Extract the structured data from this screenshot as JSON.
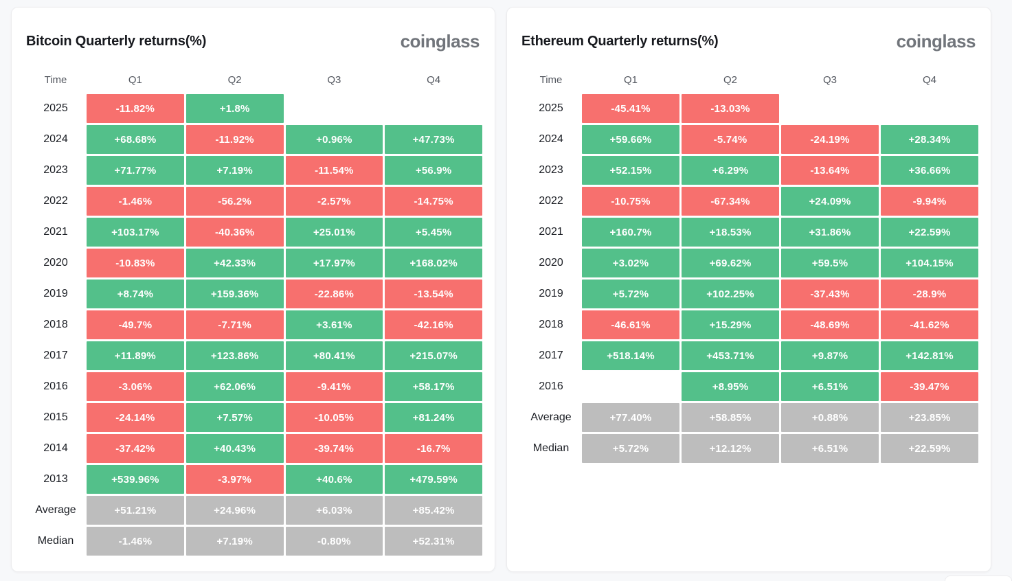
{
  "page": {
    "background": "#f7f8fa"
  },
  "colors": {
    "positive": "#53c08a",
    "negative": "#f7706e",
    "summary": "#bdbdbd"
  },
  "panels": [
    {
      "title": "Bitcoin Quarterly returns(%)",
      "logo": "coinglass",
      "columns": [
        "Time",
        "Q1",
        "Q2",
        "Q3",
        "Q4"
      ],
      "rows": [
        {
          "label": "2025",
          "cells": [
            {
              "v": "-11.82%",
              "c": "r"
            },
            {
              "v": "+1.8%",
              "c": "g"
            },
            {
              "v": "",
              "c": "e"
            },
            {
              "v": "",
              "c": "e"
            }
          ]
        },
        {
          "label": "2024",
          "cells": [
            {
              "v": "+68.68%",
              "c": "g"
            },
            {
              "v": "-11.92%",
              "c": "r"
            },
            {
              "v": "+0.96%",
              "c": "g"
            },
            {
              "v": "+47.73%",
              "c": "g"
            }
          ]
        },
        {
          "label": "2023",
          "cells": [
            {
              "v": "+71.77%",
              "c": "g"
            },
            {
              "v": "+7.19%",
              "c": "g"
            },
            {
              "v": "-11.54%",
              "c": "r"
            },
            {
              "v": "+56.9%",
              "c": "g"
            }
          ]
        },
        {
          "label": "2022",
          "cells": [
            {
              "v": "-1.46%",
              "c": "r"
            },
            {
              "v": "-56.2%",
              "c": "r"
            },
            {
              "v": "-2.57%",
              "c": "r"
            },
            {
              "v": "-14.75%",
              "c": "r"
            }
          ]
        },
        {
          "label": "2021",
          "cells": [
            {
              "v": "+103.17%",
              "c": "g"
            },
            {
              "v": "-40.36%",
              "c": "r"
            },
            {
              "v": "+25.01%",
              "c": "g"
            },
            {
              "v": "+5.45%",
              "c": "g"
            }
          ]
        },
        {
          "label": "2020",
          "cells": [
            {
              "v": "-10.83%",
              "c": "r"
            },
            {
              "v": "+42.33%",
              "c": "g"
            },
            {
              "v": "+17.97%",
              "c": "g"
            },
            {
              "v": "+168.02%",
              "c": "g"
            }
          ]
        },
        {
          "label": "2019",
          "cells": [
            {
              "v": "+8.74%",
              "c": "g"
            },
            {
              "v": "+159.36%",
              "c": "g"
            },
            {
              "v": "-22.86%",
              "c": "r"
            },
            {
              "v": "-13.54%",
              "c": "r"
            }
          ]
        },
        {
          "label": "2018",
          "cells": [
            {
              "v": "-49.7%",
              "c": "r"
            },
            {
              "v": "-7.71%",
              "c": "r"
            },
            {
              "v": "+3.61%",
              "c": "g"
            },
            {
              "v": "-42.16%",
              "c": "r"
            }
          ]
        },
        {
          "label": "2017",
          "cells": [
            {
              "v": "+11.89%",
              "c": "g"
            },
            {
              "v": "+123.86%",
              "c": "g"
            },
            {
              "v": "+80.41%",
              "c": "g"
            },
            {
              "v": "+215.07%",
              "c": "g"
            }
          ]
        },
        {
          "label": "2016",
          "cells": [
            {
              "v": "-3.06%",
              "c": "r"
            },
            {
              "v": "+62.06%",
              "c": "g"
            },
            {
              "v": "-9.41%",
              "c": "r"
            },
            {
              "v": "+58.17%",
              "c": "g"
            }
          ]
        },
        {
          "label": "2015",
          "cells": [
            {
              "v": "-24.14%",
              "c": "r"
            },
            {
              "v": "+7.57%",
              "c": "g"
            },
            {
              "v": "-10.05%",
              "c": "r"
            },
            {
              "v": "+81.24%",
              "c": "g"
            }
          ]
        },
        {
          "label": "2014",
          "cells": [
            {
              "v": "-37.42%",
              "c": "r"
            },
            {
              "v": "+40.43%",
              "c": "g"
            },
            {
              "v": "-39.74%",
              "c": "r"
            },
            {
              "v": "-16.7%",
              "c": "r"
            }
          ]
        },
        {
          "label": "2013",
          "cells": [
            {
              "v": "+539.96%",
              "c": "g"
            },
            {
              "v": "-3.97%",
              "c": "r"
            },
            {
              "v": "+40.6%",
              "c": "g"
            },
            {
              "v": "+479.59%",
              "c": "g"
            }
          ]
        },
        {
          "label": "Average",
          "cells": [
            {
              "v": "+51.21%",
              "c": "a"
            },
            {
              "v": "+24.96%",
              "c": "a"
            },
            {
              "v": "+6.03%",
              "c": "a"
            },
            {
              "v": "+85.42%",
              "c": "a"
            }
          ]
        },
        {
          "label": "Median",
          "cells": [
            {
              "v": "-1.46%",
              "c": "a"
            },
            {
              "v": "+7.19%",
              "c": "a"
            },
            {
              "v": "-0.80%",
              "c": "a"
            },
            {
              "v": "+52.31%",
              "c": "a"
            }
          ]
        }
      ]
    },
    {
      "title": "Ethereum Quarterly returns(%)",
      "logo": "coinglass",
      "columns": [
        "Time",
        "Q1",
        "Q2",
        "Q3",
        "Q4"
      ],
      "rows": [
        {
          "label": "2025",
          "cells": [
            {
              "v": "-45.41%",
              "c": "r"
            },
            {
              "v": "-13.03%",
              "c": "r"
            },
            {
              "v": "",
              "c": "e"
            },
            {
              "v": "",
              "c": "e"
            }
          ]
        },
        {
          "label": "2024",
          "cells": [
            {
              "v": "+59.66%",
              "c": "g"
            },
            {
              "v": "-5.74%",
              "c": "r"
            },
            {
              "v": "-24.19%",
              "c": "r"
            },
            {
              "v": "+28.34%",
              "c": "g"
            }
          ]
        },
        {
          "label": "2023",
          "cells": [
            {
              "v": "+52.15%",
              "c": "g"
            },
            {
              "v": "+6.29%",
              "c": "g"
            },
            {
              "v": "-13.64%",
              "c": "r"
            },
            {
              "v": "+36.66%",
              "c": "g"
            }
          ]
        },
        {
          "label": "2022",
          "cells": [
            {
              "v": "-10.75%",
              "c": "r"
            },
            {
              "v": "-67.34%",
              "c": "r"
            },
            {
              "v": "+24.09%",
              "c": "g"
            },
            {
              "v": "-9.94%",
              "c": "r"
            }
          ]
        },
        {
          "label": "2021",
          "cells": [
            {
              "v": "+160.7%",
              "c": "g"
            },
            {
              "v": "+18.53%",
              "c": "g"
            },
            {
              "v": "+31.86%",
              "c": "g"
            },
            {
              "v": "+22.59%",
              "c": "g"
            }
          ]
        },
        {
          "label": "2020",
          "cells": [
            {
              "v": "+3.02%",
              "c": "g"
            },
            {
              "v": "+69.62%",
              "c": "g"
            },
            {
              "v": "+59.5%",
              "c": "g"
            },
            {
              "v": "+104.15%",
              "c": "g"
            }
          ]
        },
        {
          "label": "2019",
          "cells": [
            {
              "v": "+5.72%",
              "c": "g"
            },
            {
              "v": "+102.25%",
              "c": "g"
            },
            {
              "v": "-37.43%",
              "c": "r"
            },
            {
              "v": "-28.9%",
              "c": "r"
            }
          ]
        },
        {
          "label": "2018",
          "cells": [
            {
              "v": "-46.61%",
              "c": "r"
            },
            {
              "v": "+15.29%",
              "c": "g"
            },
            {
              "v": "-48.69%",
              "c": "r"
            },
            {
              "v": "-41.62%",
              "c": "r"
            }
          ]
        },
        {
          "label": "2017",
          "cells": [
            {
              "v": "+518.14%",
              "c": "g"
            },
            {
              "v": "+453.71%",
              "c": "g"
            },
            {
              "v": "+9.87%",
              "c": "g"
            },
            {
              "v": "+142.81%",
              "c": "g"
            }
          ]
        },
        {
          "label": "2016",
          "cells": [
            {
              "v": "",
              "c": "e"
            },
            {
              "v": "+8.95%",
              "c": "g"
            },
            {
              "v": "+6.51%",
              "c": "g"
            },
            {
              "v": "-39.47%",
              "c": "r"
            }
          ]
        },
        {
          "label": "Average",
          "cells": [
            {
              "v": "+77.40%",
              "c": "a"
            },
            {
              "v": "+58.85%",
              "c": "a"
            },
            {
              "v": "+0.88%",
              "c": "a"
            },
            {
              "v": "+23.85%",
              "c": "a"
            }
          ]
        },
        {
          "label": "Median",
          "cells": [
            {
              "v": "+5.72%",
              "c": "a"
            },
            {
              "v": "+12.12%",
              "c": "a"
            },
            {
              "v": "+6.51%",
              "c": "a"
            },
            {
              "v": "+22.59%",
              "c": "a"
            }
          ]
        }
      ]
    }
  ],
  "chart_data": [
    {
      "type": "heatmap",
      "title": "Bitcoin Quarterly returns(%)",
      "columns": [
        "Q1",
        "Q2",
        "Q3",
        "Q4"
      ],
      "rows": [
        "2025",
        "2024",
        "2023",
        "2022",
        "2021",
        "2020",
        "2019",
        "2018",
        "2017",
        "2016",
        "2015",
        "2014",
        "2013",
        "Average",
        "Median"
      ],
      "values": [
        [
          -11.82,
          1.8,
          null,
          null
        ],
        [
          68.68,
          -11.92,
          0.96,
          47.73
        ],
        [
          71.77,
          7.19,
          -11.54,
          56.9
        ],
        [
          -1.46,
          -56.2,
          -2.57,
          -14.75
        ],
        [
          103.17,
          -40.36,
          25.01,
          5.45
        ],
        [
          -10.83,
          42.33,
          17.97,
          168.02
        ],
        [
          8.74,
          159.36,
          -22.86,
          -13.54
        ],
        [
          -49.7,
          -7.71,
          3.61,
          -42.16
        ],
        [
          11.89,
          123.86,
          80.41,
          215.07
        ],
        [
          -3.06,
          62.06,
          -9.41,
          58.17
        ],
        [
          -24.14,
          7.57,
          -10.05,
          81.24
        ],
        [
          -37.42,
          40.43,
          -39.74,
          -16.7
        ],
        [
          539.96,
          -3.97,
          40.6,
          479.59
        ],
        [
          51.21,
          24.96,
          6.03,
          85.42
        ],
        [
          -1.46,
          7.19,
          -0.8,
          52.31
        ]
      ],
      "legend": "green = positive return, red = negative return, gray = Average/Median summary rows, blank = no data"
    },
    {
      "type": "heatmap",
      "title": "Ethereum Quarterly returns(%)",
      "columns": [
        "Q1",
        "Q2",
        "Q3",
        "Q4"
      ],
      "rows": [
        "2025",
        "2024",
        "2023",
        "2022",
        "2021",
        "2020",
        "2019",
        "2018",
        "2017",
        "2016",
        "Average",
        "Median"
      ],
      "values": [
        [
          -45.41,
          -13.03,
          null,
          null
        ],
        [
          59.66,
          -5.74,
          -24.19,
          28.34
        ],
        [
          52.15,
          6.29,
          -13.64,
          36.66
        ],
        [
          -10.75,
          -67.34,
          24.09,
          -9.94
        ],
        [
          160.7,
          18.53,
          31.86,
          22.59
        ],
        [
          3.02,
          69.62,
          59.5,
          104.15
        ],
        [
          5.72,
          102.25,
          -37.43,
          -28.9
        ],
        [
          -46.61,
          15.29,
          -48.69,
          -41.62
        ],
        [
          518.14,
          453.71,
          9.87,
          142.81
        ],
        [
          null,
          8.95,
          6.51,
          -39.47
        ],
        [
          77.4,
          58.85,
          0.88,
          23.85
        ],
        [
          5.72,
          12.12,
          6.51,
          22.59
        ]
      ],
      "legend": "green = positive return, red = negative return, gray = Average/Median summary rows, blank = no data"
    }
  ]
}
